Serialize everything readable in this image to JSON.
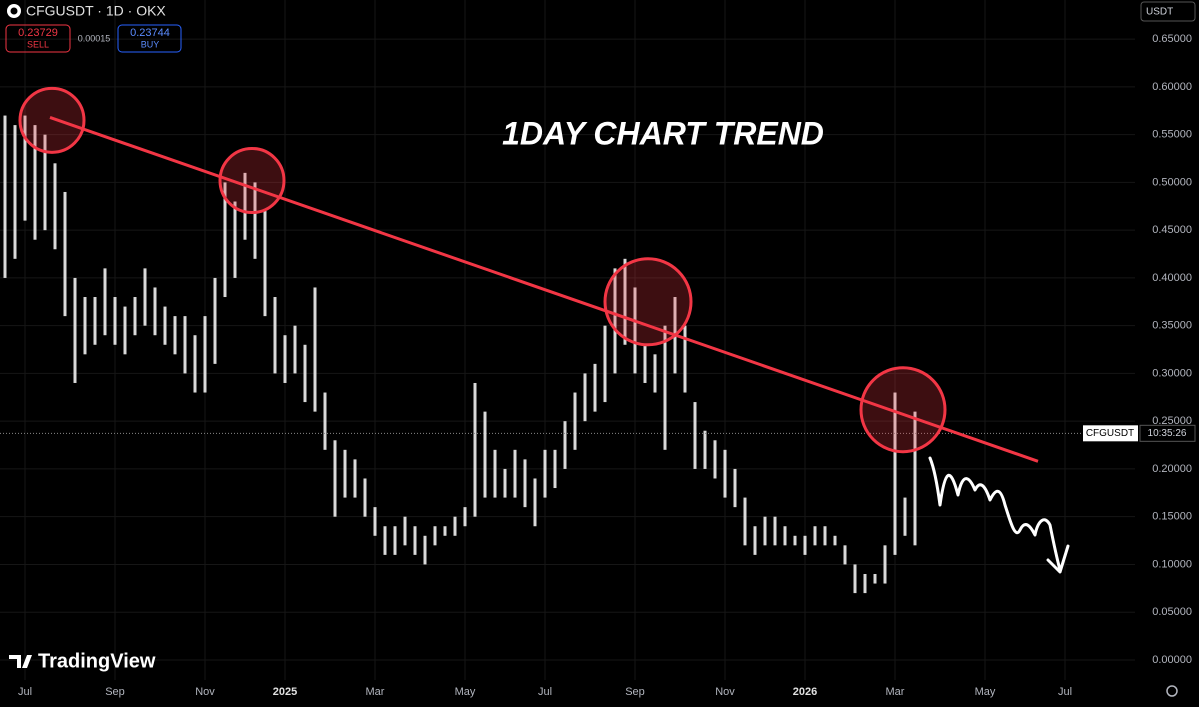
{
  "chart_data": {
    "type": "range",
    "symbol": "CFGUSDT · 1D · OKX",
    "sell": 0.23729,
    "sell_label": "SELL",
    "spread": 0.00015,
    "buy": 0.23744,
    "buy_label": "BUY",
    "currency": "USDT",
    "title": "1DAY CHART TREND",
    "price_tag": "CFGUSDT",
    "countdown": "10:35:26",
    "brand": "TradingView",
    "color": "#d9d9d9",
    "categories": [
      null,
      null,
      "Jul",
      null,
      null,
      null,
      null,
      null,
      null,
      null,
      null,
      "Sep",
      null,
      null,
      null,
      null,
      null,
      null,
      null,
      null,
      "Nov",
      null,
      null,
      null,
      null,
      null,
      null,
      null,
      "2025",
      null,
      null,
      null,
      null,
      null,
      null,
      null,
      null,
      "Mar",
      null,
      null,
      null,
      null,
      null,
      null,
      null,
      null,
      "May",
      null,
      null,
      null,
      null,
      null,
      null,
      null,
      "Jul",
      null,
      null,
      null,
      null,
      null,
      null,
      null,
      null,
      "Sep",
      null,
      null,
      null,
      null,
      null,
      null,
      null,
      null,
      "Nov",
      null,
      null,
      null,
      null,
      null,
      null,
      null,
      "2026",
      null,
      null,
      null,
      null,
      null,
      null,
      null,
      null,
      "Mar",
      null,
      null,
      null,
      null,
      null,
      null,
      null,
      null,
      "May",
      null,
      null,
      null,
      null,
      null,
      null,
      null,
      "Jul",
      null,
      null,
      null,
      null,
      null,
      null
    ],
    "bold_categories": [
      "2025",
      "2026"
    ],
    "high": [
      0.57,
      0.56,
      0.57,
      0.56,
      0.55,
      0.52,
      0.49,
      0.4,
      0.38,
      0.38,
      0.41,
      0.38,
      0.37,
      0.38,
      0.41,
      0.39,
      0.37,
      0.36,
      0.36,
      0.34,
      0.36,
      0.4,
      0.5,
      0.48,
      0.51,
      0.5,
      0.47,
      0.38,
      0.34,
      0.35,
      0.33,
      0.39,
      0.28,
      0.23,
      0.22,
      0.21,
      0.19,
      0.16,
      0.14,
      0.14,
      0.15,
      0.14,
      0.13,
      0.14,
      0.14,
      0.15,
      0.16,
      0.29,
      0.26,
      0.22,
      0.2,
      0.22,
      0.21,
      0.19,
      0.22,
      0.22,
      0.25,
      0.28,
      0.3,
      0.31,
      0.35,
      0.41,
      0.42,
      0.39,
      0.33,
      0.32,
      0.35,
      0.38,
      0.35,
      0.27,
      0.24,
      0.23,
      0.22,
      0.2,
      0.17,
      0.14,
      0.15,
      0.15,
      0.14,
      0.13,
      0.13,
      0.14,
      0.14,
      0.13,
      0.12,
      0.1,
      0.09,
      0.09,
      0.12,
      0.28,
      0.17,
      0.26,
      null,
      null,
      null,
      null,
      null,
      null,
      null,
      null,
      null,
      null,
      null,
      null,
      null,
      null,
      null,
      null,
      null,
      null,
      null,
      null,
      null
    ],
    "low": [
      0.4,
      0.42,
      0.46,
      0.44,
      0.45,
      0.43,
      0.36,
      0.29,
      0.32,
      0.33,
      0.34,
      0.33,
      0.32,
      0.34,
      0.35,
      0.34,
      0.33,
      0.32,
      0.3,
      0.28,
      0.28,
      0.31,
      0.38,
      0.4,
      0.44,
      0.42,
      0.36,
      0.3,
      0.29,
      0.3,
      0.27,
      0.26,
      0.22,
      0.15,
      0.17,
      0.17,
      0.15,
      0.13,
      0.11,
      0.11,
      0.12,
      0.11,
      0.1,
      0.12,
      0.13,
      0.13,
      0.14,
      0.15,
      0.17,
      0.17,
      0.17,
      0.17,
      0.16,
      0.14,
      0.17,
      0.18,
      0.2,
      0.22,
      0.25,
      0.26,
      0.27,
      0.3,
      0.33,
      0.3,
      0.29,
      0.28,
      0.22,
      0.3,
      0.28,
      0.2,
      0.2,
      0.19,
      0.17,
      0.16,
      0.12,
      0.11,
      0.12,
      0.12,
      0.12,
      0.12,
      0.11,
      0.12,
      0.12,
      0.12,
      0.1,
      0.07,
      0.07,
      0.08,
      0.08,
      0.11,
      0.13,
      0.12,
      null,
      null,
      null,
      null,
      null,
      null,
      null,
      null,
      null,
      null,
      null,
      null,
      null,
      null,
      null,
      null,
      null,
      null,
      null,
      null,
      null
    ],
    "ylim": [
      -0.021,
      0.691
    ],
    "yticks": [
      {
        "value": 0,
        "label": "0.00000"
      },
      {
        "value": 0.05,
        "label": "0.05000"
      },
      {
        "value": 0.1,
        "label": "0.10000"
      },
      {
        "value": 0.15,
        "label": "0.15000"
      },
      {
        "value": 0.2,
        "label": "0.20000"
      },
      {
        "value": 0.25,
        "label": "0.25000"
      },
      {
        "value": 0.3,
        "label": "0.30000"
      },
      {
        "value": 0.35,
        "label": "0.35000"
      },
      {
        "value": 0.4,
        "label": "0.40000"
      },
      {
        "value": 0.45,
        "label": "0.45000"
      },
      {
        "value": 0.5,
        "label": "0.50000"
      },
      {
        "value": 0.55,
        "label": "0.55000"
      },
      {
        "value": 0.6,
        "label": "0.60000"
      },
      {
        "value": 0.65,
        "label": "0.65000"
      }
    ],
    "grid": true,
    "trendline": {
      "from": [
        4.5,
        0.568
      ],
      "to": [
        103.3,
        0.208
      ],
      "color": "#f23645"
    },
    "touch_points": [
      [
        4.7,
        0.565
      ],
      [
        24.7,
        0.502
      ],
      [
        64.3,
        0.375
      ],
      [
        89.8,
        0.262
      ]
    ]
  }
}
